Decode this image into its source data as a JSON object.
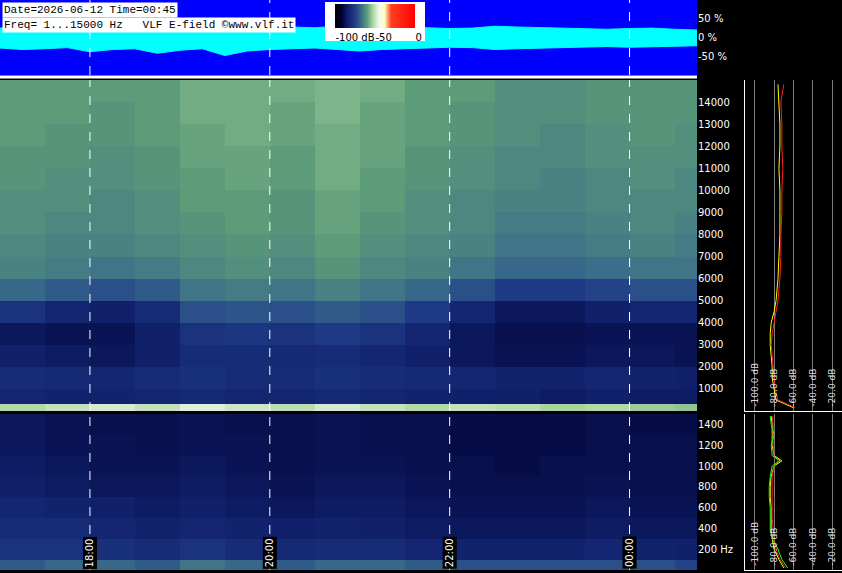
{
  "chart_data": {
    "type": "spectrogram",
    "header": [
      "Date=2026-06-12 Time=00:45",
      "Freq= 1...15000 Hz   VLF E-field ©www.vlf.it"
    ],
    "xlim": [
      17,
      24.75
    ],
    "xticks": [
      {
        "value": 18,
        "label": "18:00"
      },
      {
        "value": 20,
        "label": "20:00"
      },
      {
        "value": 22,
        "label": "22:00"
      },
      {
        "value": 24,
        "label": "00:00"
      }
    ],
    "colorbar": {
      "range": [
        -100,
        0
      ],
      "ticks": [
        {
          "value": -100,
          "label": "-100 dB"
        },
        -50,
        0
      ]
    },
    "waveform": {
      "ylim": [
        -100,
        100
      ],
      "yticks": [
        {
          "value": 50,
          "label": "50 %"
        },
        {
          "value": 0,
          "label": "0 %"
        },
        {
          "value": -50,
          "label": "-50 %"
        }
      ],
      "x": [
        17,
        17.25,
        17.5,
        17.75,
        18,
        18.25,
        18.5,
        18.75,
        19,
        19.25,
        19.5,
        19.75,
        20,
        20.25,
        20.5,
        20.75,
        21,
        21.25,
        21.5,
        21.75,
        22,
        22.25,
        22.5,
        22.75,
        23,
        23.25,
        23.5,
        23.75,
        24,
        24.25,
        24.5,
        24.75
      ],
      "series": [
        {
          "color": "#00ffff",
          "values": [
            25,
            30,
            28,
            26,
            35,
            30,
            28,
            40,
            32,
            30,
            45,
            35,
            30,
            28,
            26,
            30,
            35,
            30,
            28,
            26,
            24,
            25,
            30,
            28,
            26,
            25,
            24,
            22,
            24,
            25,
            22,
            20
          ]
        },
        {
          "color": "#00ffff",
          "values": [
            -28,
            -32,
            -30,
            -27,
            -38,
            -32,
            -30,
            -42,
            -34,
            -30,
            -48,
            -36,
            -32,
            -30,
            -28,
            -32,
            -36,
            -32,
            -30,
            -28,
            -26,
            -27,
            -32,
            -30,
            -28,
            -26,
            -25,
            -24,
            -26,
            -25,
            -24,
            -22
          ]
        }
      ]
    },
    "spectrogram_high": {
      "ylim": [
        0,
        15000
      ],
      "yticks": [
        1000,
        2000,
        3000,
        4000,
        5000,
        6000,
        7000,
        8000,
        9000,
        10000,
        11000,
        12000,
        13000,
        14000
      ],
      "x_bins": [
        17,
        17.5,
        18,
        18.5,
        19,
        19.5,
        20,
        20.5,
        21,
        21.5,
        22,
        22.5,
        23,
        23.5,
        24,
        24.5,
        24.75
      ],
      "y_bins": [
        0,
        300,
        1000,
        2000,
        3000,
        4000,
        5000,
        6000,
        7000,
        8000,
        9000,
        10000,
        11000,
        12000,
        13000,
        14000,
        15000
      ],
      "cells": [
        [
          -52,
          -50,
          -48,
          -50,
          -47,
          -49,
          -51,
          -48,
          -50,
          -52,
          -50,
          -51,
          -53,
          -52,
          -54,
          -55
        ],
        [
          -82,
          -83,
          -83,
          -82,
          -81,
          -82,
          -82,
          -81,
          -82,
          -83,
          -84,
          -84,
          -85,
          -84,
          -85,
          -85
        ],
        [
          -80,
          -81,
          -82,
          -80,
          -79,
          -80,
          -80,
          -79,
          -80,
          -81,
          -82,
          -83,
          -83,
          -82,
          -83,
          -84
        ],
        [
          -84,
          -85,
          -86,
          -84,
          -80,
          -80,
          -81,
          -80,
          -82,
          -84,
          -86,
          -87,
          -87,
          -86,
          -86,
          -87
        ],
        [
          -86,
          -87,
          -87,
          -84,
          -78,
          -77,
          -78,
          -76,
          -78,
          -82,
          -86,
          -88,
          -88,
          -87,
          -87,
          -87
        ],
        [
          -78,
          -82,
          -84,
          -80,
          -72,
          -71,
          -72,
          -70,
          -72,
          -76,
          -82,
          -86,
          -86,
          -84,
          -82,
          -82
        ],
        [
          -68,
          -70,
          -72,
          -70,
          -66,
          -65,
          -66,
          -64,
          -66,
          -68,
          -72,
          -76,
          -76,
          -74,
          -72,
          -72
        ],
        [
          -64,
          -65,
          -66,
          -65,
          -63,
          -62,
          -63,
          -61,
          -63,
          -64,
          -66,
          -68,
          -68,
          -67,
          -66,
          -66
        ],
        [
          -63,
          -64,
          -64,
          -63,
          -62,
          -61,
          -62,
          -60,
          -62,
          -63,
          -64,
          -66,
          -66,
          -65,
          -64,
          -65
        ],
        [
          -62,
          -63,
          -63,
          -62,
          -61,
          -60,
          -61,
          -59,
          -61,
          -62,
          -63,
          -65,
          -65,
          -64,
          -63,
          -64
        ],
        [
          -62,
          -62,
          -63,
          -62,
          -60,
          -60,
          -61,
          -59,
          -60,
          -62,
          -63,
          -64,
          -64,
          -63,
          -63,
          -63
        ],
        [
          -61,
          -62,
          -62,
          -61,
          -60,
          -59,
          -60,
          -58,
          -60,
          -61,
          -62,
          -63,
          -64,
          -63,
          -62,
          -63
        ],
        [
          -61,
          -61,
          -62,
          -61,
          -59,
          -59,
          -60,
          -58,
          -59,
          -61,
          -62,
          -63,
          -63,
          -62,
          -62,
          -62
        ],
        [
          -60,
          -61,
          -61,
          -60,
          -59,
          -58,
          -59,
          -58,
          -59,
          -60,
          -61,
          -62,
          -63,
          -62,
          -61,
          -62
        ],
        [
          -60,
          -60,
          -61,
          -60,
          -58,
          -58,
          -59,
          -57,
          -59,
          -60,
          -61,
          -62,
          -62,
          -61,
          -61,
          -61
        ],
        [
          -60,
          -60,
          -60,
          -60,
          -58,
          -58,
          -58,
          -57,
          -58,
          -60,
          -60,
          -62,
          -62,
          -61,
          -61,
          -61
        ]
      ]
    },
    "spectrogram_low": {
      "ylim": [
        0,
        1500
      ],
      "yticks": [
        {
          "value": 200,
          "label": "200 Hz"
        },
        400,
        600,
        800,
        1000,
        1200,
        1400
      ],
      "x_bins": [
        17,
        17.5,
        18,
        18.5,
        19,
        19.5,
        20,
        20.5,
        21,
        21.5,
        22,
        22.5,
        23,
        23.5,
        24,
        24.5,
        24.75
      ],
      "y_bins": [
        0,
        100,
        300,
        500,
        700,
        900,
        1100,
        1300,
        1500
      ],
      "cells": [
        [
          -70,
          -68,
          -68,
          -70,
          -66,
          -68,
          -70,
          -68,
          -68,
          -70,
          -72,
          -72,
          -72,
          -72,
          -72,
          -74
        ],
        [
          -78,
          -78,
          -79,
          -80,
          -78,
          -80,
          -81,
          -80,
          -80,
          -82,
          -83,
          -83,
          -83,
          -82,
          -83,
          -84
        ],
        [
          -80,
          -80,
          -82,
          -83,
          -82,
          -83,
          -84,
          -83,
          -84,
          -85,
          -86,
          -86,
          -86,
          -85,
          -86,
          -86
        ],
        [
          -82,
          -83,
          -84,
          -85,
          -84,
          -85,
          -86,
          -85,
          -85,
          -86,
          -87,
          -87,
          -87,
          -86,
          -87,
          -87
        ],
        [
          -84,
          -85,
          -86,
          -86,
          -85,
          -86,
          -87,
          -86,
          -86,
          -87,
          -88,
          -88,
          -88,
          -87,
          -88,
          -88
        ],
        [
          -85,
          -86,
          -87,
          -87,
          -86,
          -87,
          -88,
          -87,
          -87,
          -88,
          -88,
          -89,
          -88,
          -88,
          -88,
          -88
        ],
        [
          -86,
          -87,
          -87,
          -88,
          -87,
          -87,
          -88,
          -87,
          -88,
          -88,
          -89,
          -89,
          -89,
          -88,
          -88,
          -88
        ],
        [
          -86,
          -87,
          -88,
          -88,
          -87,
          -88,
          -88,
          -87,
          -88,
          -88,
          -89,
          -89,
          -89,
          -88,
          -89,
          -89
        ]
      ]
    },
    "profile_high": {
      "xlim": [
        -110,
        -10
      ],
      "xticks": [
        {
          "value": -100,
          "label": "-100.0 dB"
        },
        {
          "value": -80,
          "label": "-80.0 dB"
        },
        {
          "value": -60,
          "label": "-60.0 dB"
        },
        {
          "value": -40,
          "label": "-40.0 dB"
        },
        {
          "value": -20,
          "label": "-20.0 dB"
        }
      ],
      "y": [
        150,
        500,
        1000,
        1500,
        2000,
        2500,
        3000,
        3500,
        4000,
        4500,
        5000,
        5500,
        6000,
        7000,
        8000,
        9000,
        10000,
        11000,
        12000,
        13000,
        14000,
        14800
      ],
      "series": [
        {
          "color": "#ffff00",
          "values": [
            -60,
            -78,
            -80,
            -82,
            -82,
            -83,
            -84,
            -84,
            -83,
            -80,
            -78,
            -77,
            -76,
            -75,
            -74,
            -74,
            -74,
            -75,
            -74,
            -74,
            -75,
            -76
          ]
        },
        {
          "color": "#ff2020",
          "values": [
            -58,
            -76,
            -79,
            -80,
            -81,
            -82,
            -83,
            -82,
            -80,
            -78,
            -76,
            -75,
            -74,
            -73,
            -73,
            -72,
            -72,
            -71,
            -72,
            -72,
            -73,
            -70
          ]
        }
      ]
    },
    "profile_low": {
      "xlim": [
        -110,
        -10
      ],
      "xticks": [
        {
          "value": -100,
          "label": "-100.0 dB"
        },
        {
          "value": -80,
          "label": "-80.0 dB"
        },
        {
          "value": -60,
          "label": "-60.0 dB"
        },
        {
          "value": -40,
          "label": "-40.0 dB"
        },
        {
          "value": -20,
          "label": "-20.0 dB"
        }
      ],
      "y": [
        20,
        100,
        200,
        300,
        400,
        500,
        600,
        700,
        800,
        900,
        1000,
        1050,
        1100,
        1200,
        1300,
        1400,
        1480
      ],
      "series": [
        {
          "color": "#ffff00",
          "values": [
            -70,
            -75,
            -80,
            -82,
            -83,
            -83,
            -83,
            -84,
            -84,
            -83,
            -80,
            -72,
            -80,
            -82,
            -82,
            -82,
            -83
          ]
        },
        {
          "color": "#ff2020",
          "values": [
            -68,
            -74,
            -78,
            -80,
            -81,
            -82,
            -82,
            -82,
            -82,
            -82,
            -80,
            -76,
            -80,
            -81,
            -81,
            -81,
            -82
          ]
        },
        {
          "color": "#20ff20",
          "values": [
            -66,
            -72,
            -76,
            -82,
            -84,
            -84,
            -84,
            -85,
            -85,
            -84,
            -82,
            -74,
            -82,
            -83,
            -80,
            -83,
            -84
          ]
        }
      ]
    }
  }
}
